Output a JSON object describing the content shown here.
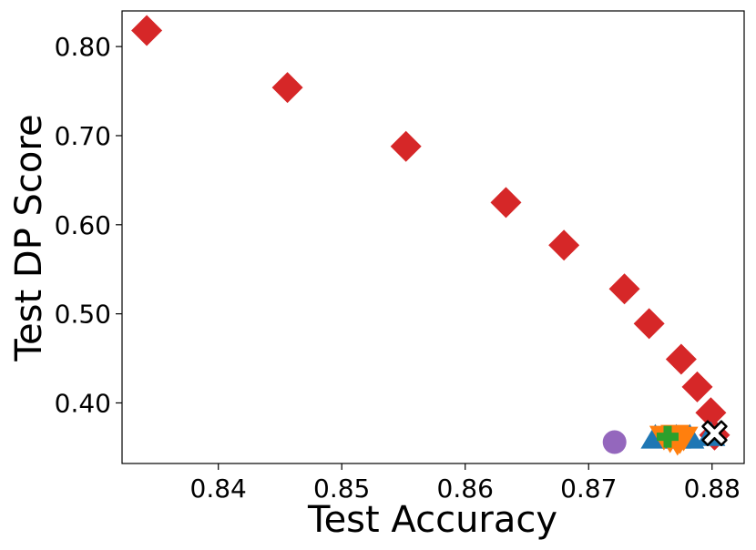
{
  "chart_data": {
    "type": "scatter",
    "title": "",
    "xlabel": "Test Accuracy",
    "ylabel": "Test DP Score",
    "xlim": [
      0.8322,
      0.8826
    ],
    "ylim": [
      0.332,
      0.84
    ],
    "xticks": [
      0.84,
      0.85,
      0.86,
      0.87,
      0.88
    ],
    "xtick_labels": [
      "0.84",
      "0.85",
      "0.86",
      "0.87",
      "0.88"
    ],
    "yticks": [
      0.4,
      0.5,
      0.6,
      0.7,
      0.8
    ],
    "ytick_labels": [
      "0.40",
      "0.50",
      "0.60",
      "0.70",
      "0.80"
    ],
    "grid": false,
    "legend": false,
    "series": [
      {
        "marker": "diamond",
        "color": "#d62728",
        "points": [
          [
            0.8342,
            0.818
          ],
          [
            0.8456,
            0.754
          ],
          [
            0.8552,
            0.688
          ],
          [
            0.8633,
            0.625
          ],
          [
            0.868,
            0.577
          ],
          [
            0.8729,
            0.528
          ],
          [
            0.8749,
            0.489
          ],
          [
            0.8775,
            0.449
          ],
          [
            0.8788,
            0.418
          ],
          [
            0.8799,
            0.389
          ],
          [
            0.8802,
            0.364
          ]
        ]
      },
      {
        "marker": "circle",
        "color": "#9467bd",
        "points": [
          [
            0.8721,
            0.356
          ]
        ]
      },
      {
        "marker": "triangle-up",
        "color": "#1f77b4",
        "points": [
          [
            0.8754,
            0.361
          ],
          [
            0.8771,
            0.361
          ],
          [
            0.8782,
            0.361
          ],
          [
            0.8799,
            0.364
          ]
        ]
      },
      {
        "marker": "triangle-down",
        "color": "#ff7f0e",
        "points": [
          [
            0.8761,
            0.362
          ],
          [
            0.8766,
            0.359
          ],
          [
            0.877,
            0.363
          ],
          [
            0.8774,
            0.358
          ],
          [
            0.8777,
            0.361
          ],
          [
            0.8772,
            0.356
          ]
        ]
      },
      {
        "marker": "plus",
        "color": "#2ca02c",
        "points": [
          [
            0.8764,
            0.362
          ]
        ]
      },
      {
        "marker": "x-filled",
        "color": "#ffffff",
        "edgecolor": "#000000",
        "points": [
          [
            0.8802,
            0.366
          ]
        ]
      }
    ]
  }
}
